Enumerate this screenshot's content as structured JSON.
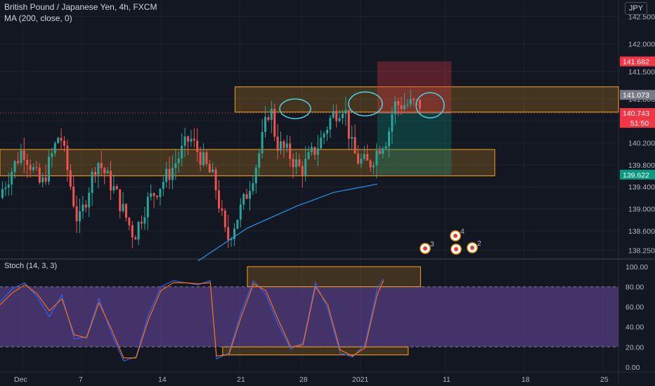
{
  "header": {
    "title": "British Pound / Japanese Yen, 4h, FXCM",
    "indicator": "MA (200, close, 0)",
    "currency_badge": "JPY",
    "stoch_label": "Stoch (14, 3, 3)"
  },
  "colors": {
    "background": "#131722",
    "bull": "#26a69a",
    "bear": "#ef5350",
    "ma": "#2196f3",
    "stoch_k": "#2962ff",
    "stoch_d": "#ff6d00",
    "zone_border": "#f7a21b",
    "stoch_band": "#7e57c2"
  },
  "chart_data": [
    {
      "type": "candlestick",
      "title": "British Pound / Japanese Yen, 4h, FXCM",
      "x_ticks": [
        "Dec",
        "7",
        "14",
        "21",
        "28",
        "2021",
        "11",
        "18",
        "25"
      ],
      "y_ticks": [
        "142.500",
        "142.000",
        "141.500",
        "141.000",
        "140.600",
        "140.200",
        "139.800",
        "139.400",
        "139.000",
        "138.600",
        "138.250"
      ],
      "y_range": [
        138.1,
        142.8
      ],
      "price_labels": [
        {
          "value": "141.682",
          "color": "#f23645"
        },
        {
          "value": "141.073",
          "color": "#787b86"
        },
        {
          "value": "140.743",
          "color": "#f23645"
        },
        {
          "value": "51:50",
          "color": "#f23645"
        },
        {
          "value": "139.622",
          "color": "#089981"
        }
      ],
      "series": [
        {
          "name": "MA (200, close, 0)",
          "points": [
            [
              0.32,
              138.05
            ],
            [
              0.4,
              138.65
            ],
            [
              0.48,
              139.05
            ],
            [
              0.54,
              139.3
            ],
            [
              0.61,
              139.45
            ]
          ]
        }
      ],
      "zones": [
        {
          "label": "resistance",
          "x": [
            0.38,
            0.9
          ],
          "y": [
            140.76,
            141.22
          ]
        },
        {
          "label": "support",
          "x": [
            0.0,
            0.8
          ],
          "y": [
            139.6,
            140.08
          ]
        }
      ],
      "position": {
        "entry": 140.743,
        "stop": 141.682,
        "target": 139.622,
        "x": [
          0.61,
          0.73
        ]
      },
      "event_markers": [
        "3",
        "4",
        "2"
      ]
    },
    {
      "type": "line",
      "title": "Stoch (14, 3, 3)",
      "y_ticks": [
        "100.00",
        "80.00",
        "60.00",
        "40.00",
        "20.00",
        "0.00"
      ],
      "y_range": [
        -5,
        107
      ],
      "bands": [
        20,
        80
      ],
      "series": [
        {
          "name": "%K",
          "points": [
            [
              0,
              65
            ],
            [
              0.02,
              78
            ],
            [
              0.04,
              84
            ],
            [
              0.06,
              70
            ],
            [
              0.08,
              50
            ],
            [
              0.1,
              72
            ],
            [
              0.12,
              28
            ],
            [
              0.14,
              30
            ],
            [
              0.16,
              68
            ],
            [
              0.18,
              34
            ],
            [
              0.2,
              6
            ],
            [
              0.22,
              10
            ],
            [
              0.24,
              52
            ],
            [
              0.26,
              80
            ],
            [
              0.28,
              86
            ],
            [
              0.3,
              84
            ],
            [
              0.32,
              82
            ],
            [
              0.34,
              86
            ],
            [
              0.35,
              8
            ],
            [
              0.37,
              14
            ],
            [
              0.39,
              55
            ],
            [
              0.41,
              86
            ],
            [
              0.43,
              72
            ],
            [
              0.45,
              42
            ],
            [
              0.47,
              18
            ],
            [
              0.49,
              24
            ],
            [
              0.51,
              84
            ],
            [
              0.53,
              58
            ],
            [
              0.55,
              14
            ],
            [
              0.57,
              10
            ],
            [
              0.59,
              22
            ],
            [
              0.61,
              78
            ],
            [
              0.62,
              88
            ]
          ]
        },
        {
          "name": "%D",
          "points": [
            [
              0,
              62
            ],
            [
              0.02,
              74
            ],
            [
              0.04,
              82
            ],
            [
              0.06,
              73
            ],
            [
              0.08,
              56
            ],
            [
              0.1,
              68
            ],
            [
              0.12,
              32
            ],
            [
              0.14,
              29
            ],
            [
              0.16,
              64
            ],
            [
              0.18,
              38
            ],
            [
              0.2,
              9
            ],
            [
              0.22,
              9
            ],
            [
              0.24,
              47
            ],
            [
              0.26,
              76
            ],
            [
              0.28,
              84
            ],
            [
              0.3,
              84
            ],
            [
              0.32,
              83
            ],
            [
              0.34,
              84
            ],
            [
              0.35,
              11
            ],
            [
              0.37,
              12
            ],
            [
              0.39,
              50
            ],
            [
              0.41,
              83
            ],
            [
              0.43,
              76
            ],
            [
              0.45,
              47
            ],
            [
              0.47,
              20
            ],
            [
              0.49,
              22
            ],
            [
              0.51,
              80
            ],
            [
              0.53,
              62
            ],
            [
              0.55,
              17
            ],
            [
              0.57,
              11
            ],
            [
              0.59,
              19
            ],
            [
              0.61,
              72
            ],
            [
              0.62,
              86
            ]
          ]
        }
      ],
      "zones": [
        {
          "label": "overbought",
          "x": [
            0.4,
            0.68
          ],
          "y": [
            80,
            100
          ]
        },
        {
          "label": "oversold",
          "x": [
            0.36,
            0.66
          ],
          "y": [
            12,
            20
          ]
        }
      ]
    }
  ]
}
